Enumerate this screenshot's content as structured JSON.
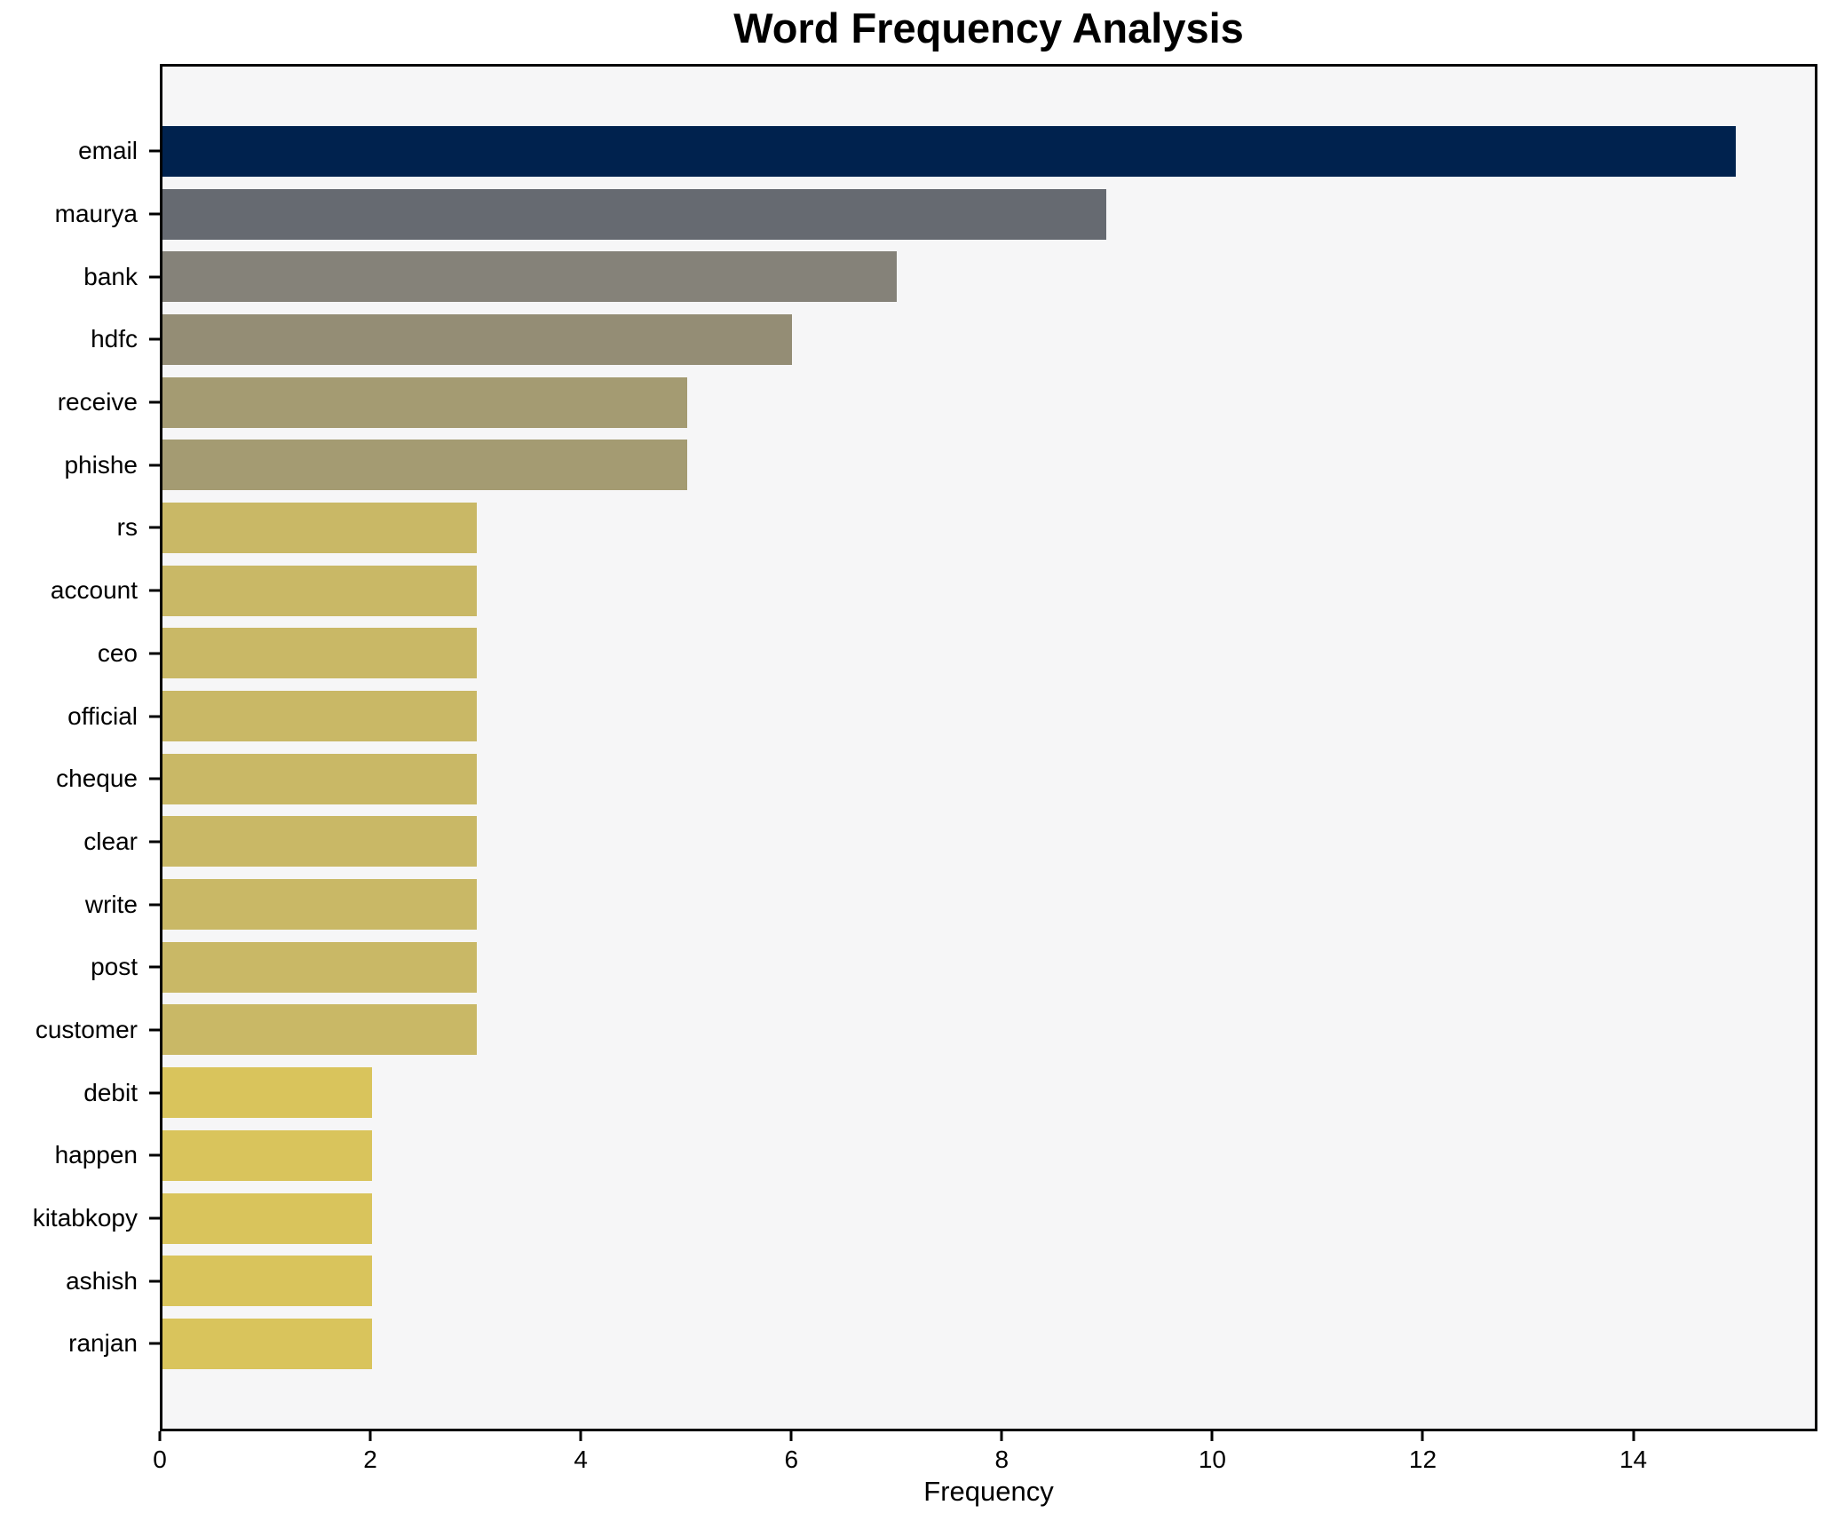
{
  "chart_data": {
    "type": "bar",
    "orientation": "horizontal",
    "title": "Word Frequency Analysis",
    "xlabel": "Frequency",
    "ylabel": "",
    "categories": [
      "email",
      "maurya",
      "bank",
      "hdfc",
      "receive",
      "phishe",
      "rs",
      "account",
      "ceo",
      "official",
      "cheque",
      "clear",
      "write",
      "post",
      "customer",
      "debit",
      "happen",
      "kitabkopy",
      "ashish",
      "ranjan"
    ],
    "values": [
      15,
      9,
      7,
      6,
      5,
      5,
      3,
      3,
      3,
      3,
      3,
      3,
      3,
      3,
      3,
      2,
      2,
      2,
      2,
      2
    ],
    "bar_colors": [
      "#00224e",
      "#666a71",
      "#858279",
      "#948d75",
      "#a49b72",
      "#a49b72",
      "#c9b866",
      "#c9b866",
      "#c9b866",
      "#c9b866",
      "#c9b866",
      "#c9b866",
      "#c9b866",
      "#c9b866",
      "#c9b866",
      "#d9c45c",
      "#d9c45c",
      "#d9c45c",
      "#d9c45c",
      "#d9c45c"
    ],
    "xlim": [
      0,
      15.75
    ],
    "xticks": [
      0,
      2,
      4,
      6,
      8,
      10,
      12,
      14
    ],
    "grid": false,
    "legend": false,
    "plot_background": "#f6f6f7",
    "figure_background": "#ffffff",
    "spine_color": "#000000",
    "colormap": "cividis-reversed-by-value"
  }
}
